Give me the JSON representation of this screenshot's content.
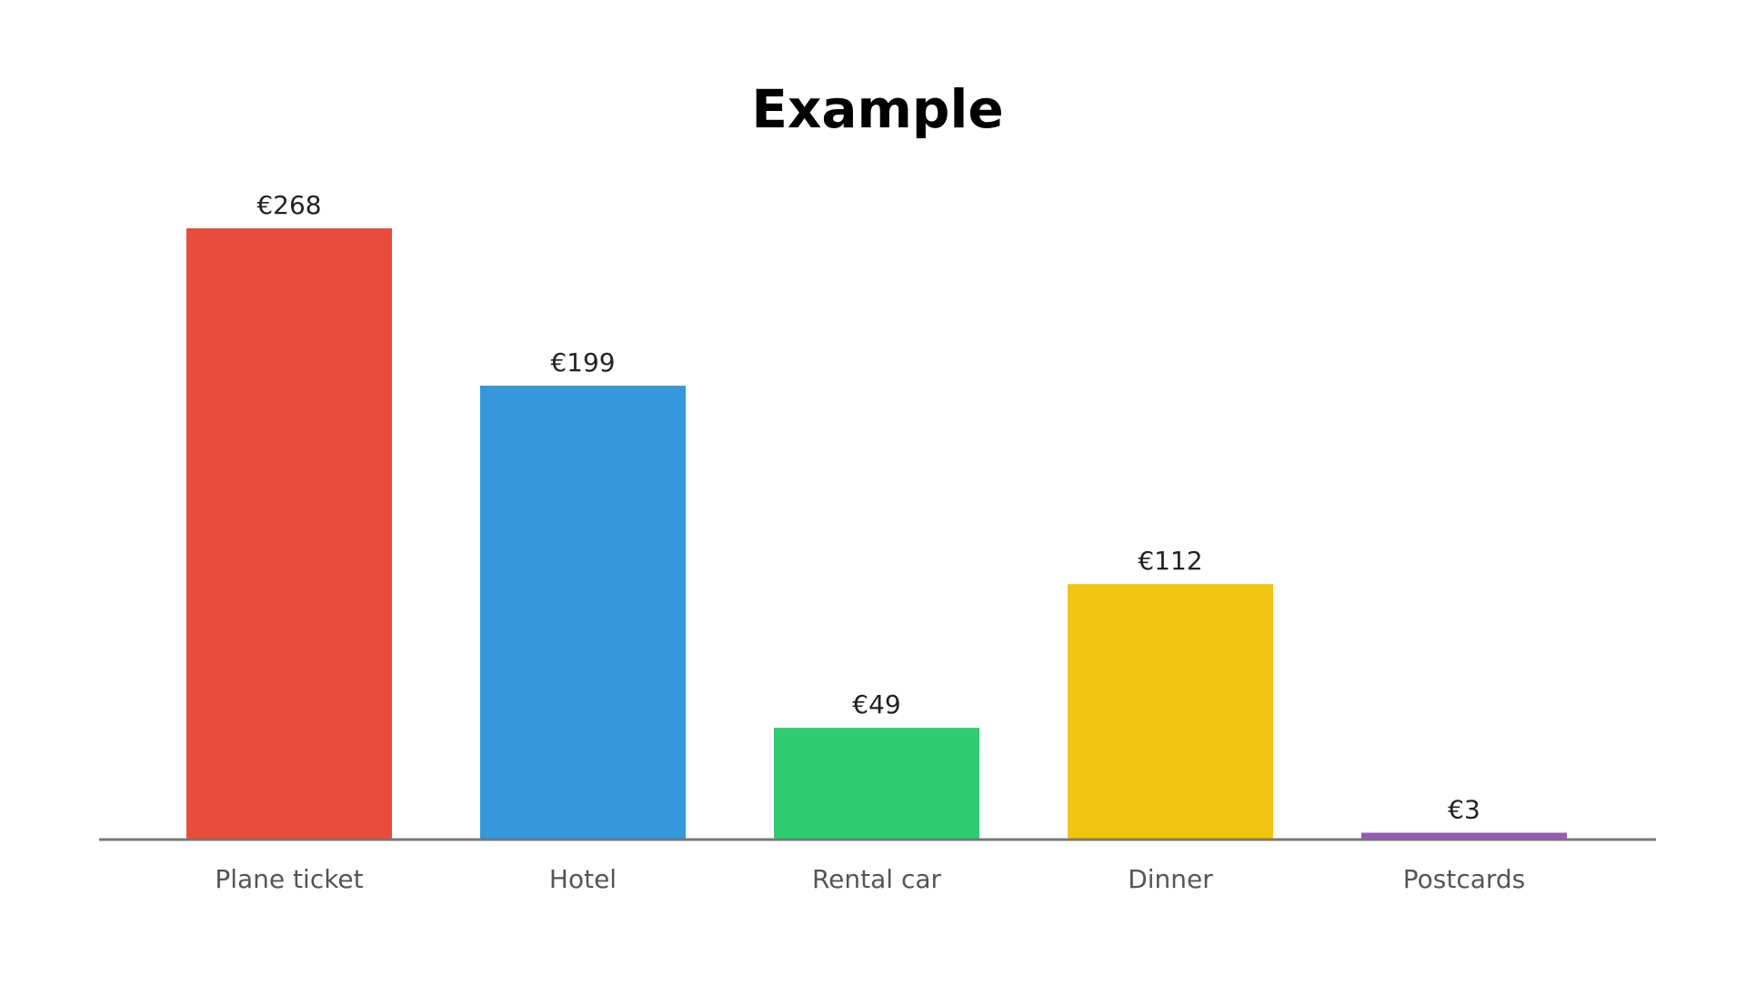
{
  "chart_data": {
    "type": "bar",
    "title": "Example",
    "xlabel": "",
    "ylabel": "",
    "categories": [
      "Plane ticket",
      "Hotel",
      "Rental car",
      "Dinner",
      "Postcards"
    ],
    "values": [
      268,
      199,
      49,
      112,
      3
    ],
    "value_labels": [
      "€268",
      "€199",
      "€49",
      "€112",
      "€3"
    ],
    "colors": [
      "#E74C3C",
      "#3498DB",
      "#2ECC71",
      "#F1C40F",
      "#9B59B6"
    ],
    "axis_color": "#777777",
    "ylim": [
      0,
      268
    ],
    "grid": false,
    "legend": "none"
  }
}
